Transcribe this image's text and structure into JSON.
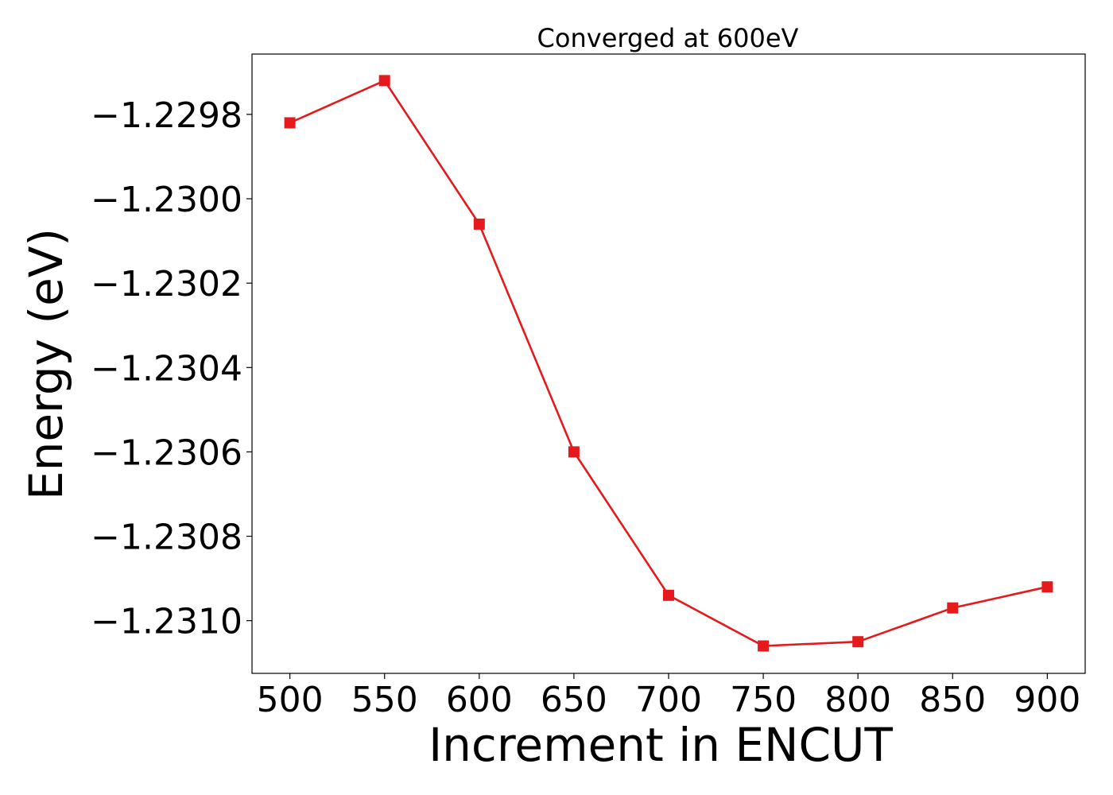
{
  "chart_data": {
    "type": "line",
    "title": "Converged at 600eV",
    "xlabel": "Increment in ENCUT",
    "ylabel": "Energy (eV)",
    "x": [
      500,
      550,
      600,
      650,
      700,
      750,
      800,
      850,
      900
    ],
    "series": [
      {
        "values": [
          -1.22982,
          -1.22972,
          -1.23006,
          -1.2306,
          -1.23094,
          -1.23106,
          -1.23105,
          -1.23097,
          -1.23092
        ],
        "color": "#e41a1c",
        "marker": "square"
      }
    ],
    "xticks": [
      500,
      550,
      600,
      650,
      700,
      750,
      800,
      850,
      900
    ],
    "xtick_labels": [
      "500",
      "550",
      "600",
      "650",
      "700",
      "750",
      "800",
      "850",
      "900"
    ],
    "yticks": [
      -1.2298,
      -1.23,
      -1.2302,
      -1.2304,
      -1.2306,
      -1.2308,
      -1.231
    ],
    "ytick_labels": [
      "−1.2298",
      "−1.2300",
      "−1.2302",
      "−1.2304",
      "−1.2306",
      "−1.2308",
      "−1.2310"
    ],
    "xlim": [
      480,
      920
    ],
    "ylim": [
      -1.231125,
      -1.229657
    ],
    "grid": false,
    "legend": "none"
  }
}
